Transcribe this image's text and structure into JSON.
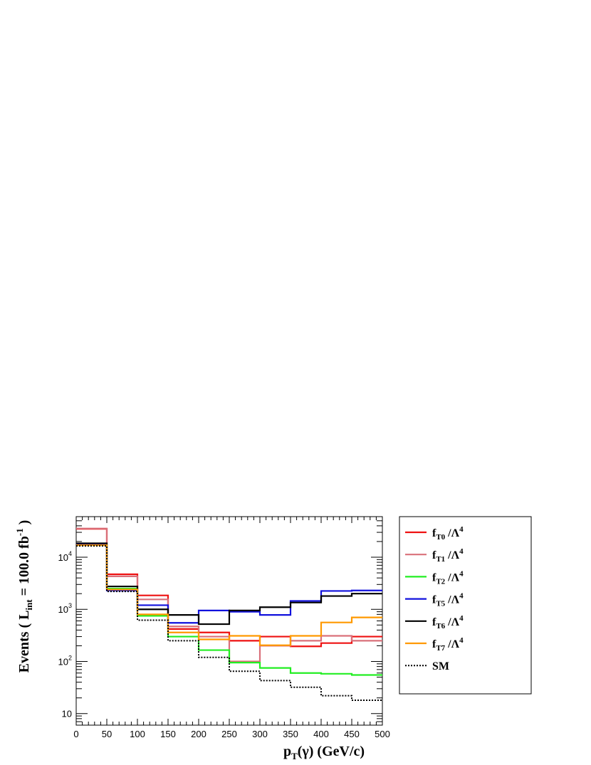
{
  "chart_data": {
    "type": "line",
    "step": true,
    "log_y": true,
    "xlim": [
      0,
      500
    ],
    "ylim": [
      6,
      60000
    ],
    "x_bin_edges": [
      0,
      50,
      100,
      150,
      200,
      250,
      300,
      350,
      400,
      450,
      500
    ],
    "x_tick_labels": [
      "0",
      "50",
      "100",
      "150",
      "200",
      "250",
      "300",
      "350",
      "400",
      "450",
      "500"
    ],
    "y_tick_labels": [
      {
        "value": 10,
        "base": "10",
        "exp": ""
      },
      {
        "value": 100,
        "base": "10",
        "exp": "2"
      },
      {
        "value": 1000,
        "base": "10",
        "exp": "3"
      },
      {
        "value": 10000,
        "base": "10",
        "exp": "4"
      }
    ],
    "xlabel": {
      "main": "p",
      "sub": "T",
      "rest": "(γ) (GeV/c)"
    },
    "ylabel": {
      "prefix": "Events ( L",
      "sub": "int",
      "mid": " = 100.0 fb",
      "sup": "-1",
      "suffix": " )"
    },
    "legend_position": "right",
    "series": [
      {
        "name": "fT0/Λ4",
        "label": {
          "base": "f",
          "sub": "T0",
          "rest": " /Λ",
          "sup": "4"
        },
        "color": "#ee1111",
        "dashed": false,
        "values": [
          35000,
          4700,
          1850,
          420,
          360,
          250,
          300,
          195,
          225,
          300
        ]
      },
      {
        "name": "fT1/Λ4",
        "label": {
          "base": "f",
          "sub": "T1",
          "rest": " /Λ",
          "sup": "4"
        },
        "color": "#d9707a",
        "dashed": false,
        "values": [
          35500,
          4300,
          1550,
          470,
          300,
          100,
          200,
          250,
          310,
          250
        ]
      },
      {
        "name": "fT2/Λ4",
        "label": {
          "base": "f",
          "sub": "T2",
          "rest": " /Λ",
          "sup": "4"
        },
        "color": "#22ee22",
        "dashed": false,
        "values": [
          17500,
          2500,
          750,
          300,
          165,
          95,
          75,
          60,
          58,
          55
        ]
      },
      {
        "name": "fT5/Λ4",
        "label": {
          "base": "f",
          "sub": "T5",
          "rest": " /Λ",
          "sup": "4"
        },
        "color": "#1111dd",
        "dashed": false,
        "values": [
          17500,
          2300,
          1200,
          550,
          950,
          900,
          780,
          1450,
          2250,
          2300
        ]
      },
      {
        "name": "fT6/Λ4",
        "label": {
          "base": "f",
          "sub": "T6",
          "rest": " /Λ",
          "sup": "4"
        },
        "color": "#000000",
        "dashed": false,
        "values": [
          18500,
          2750,
          1000,
          780,
          520,
          950,
          1100,
          1350,
          1800,
          2000
        ]
      },
      {
        "name": "fT7/Λ4",
        "label": {
          "base": "f",
          "sub": "T7",
          "rest": " /Λ",
          "sup": "4"
        },
        "color": "#ff9900",
        "dashed": false,
        "values": [
          17000,
          2400,
          800,
          360,
          265,
          310,
          205,
          310,
          560,
          700
        ]
      },
      {
        "name": "SM",
        "label": {
          "base": "SM",
          "sub": "",
          "rest": "",
          "sup": ""
        },
        "color": "#000000",
        "dashed": true,
        "values": [
          16500,
          2200,
          620,
          250,
          120,
          65,
          43,
          32,
          22,
          18
        ]
      }
    ]
  }
}
